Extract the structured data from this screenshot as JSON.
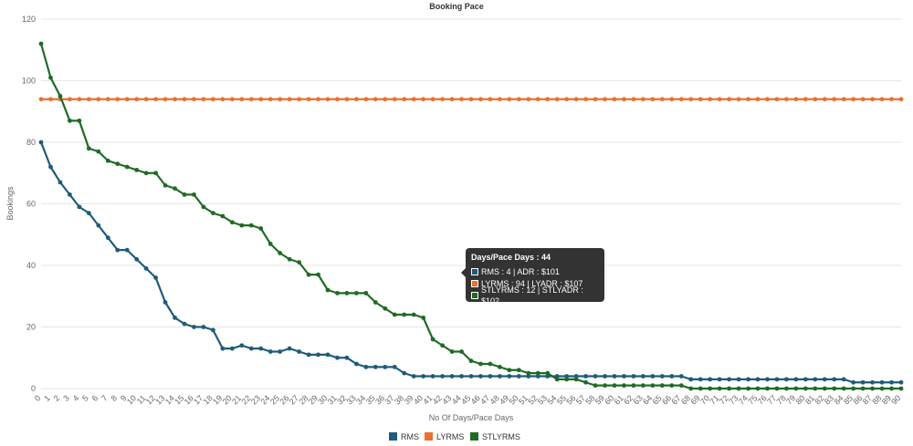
{
  "chart_data": {
    "type": "line",
    "title": "Booking Pace",
    "xlabel": "No Of Days/Pace Days",
    "ylabel": "Bookings",
    "ylim": [
      0,
      120
    ],
    "yticks": [
      0,
      20,
      40,
      60,
      80,
      100,
      120
    ],
    "grid": true,
    "legend_position": "bottom",
    "x": [
      0,
      1,
      2,
      3,
      4,
      5,
      6,
      7,
      8,
      9,
      10,
      11,
      12,
      13,
      14,
      15,
      16,
      17,
      18,
      19,
      20,
      21,
      22,
      23,
      24,
      25,
      26,
      27,
      28,
      29,
      30,
      31,
      32,
      33,
      34,
      35,
      36,
      37,
      38,
      39,
      40,
      41,
      42,
      43,
      44,
      45,
      46,
      47,
      48,
      49,
      50,
      51,
      52,
      53,
      54,
      55,
      56,
      57,
      58,
      59,
      60,
      61,
      62,
      63,
      64,
      65,
      66,
      67,
      68,
      69,
      70,
      71,
      72,
      73,
      74,
      75,
      76,
      77,
      78,
      79,
      80,
      81,
      82,
      83,
      84,
      85,
      86,
      87,
      88,
      89,
      90
    ],
    "series": [
      {
        "name": "RMS",
        "color": "#1f5b7a",
        "values": [
          80,
          72,
          67,
          63,
          59,
          57,
          53,
          49,
          45,
          45,
          42,
          39,
          36,
          28,
          23,
          21,
          20,
          20,
          19,
          13,
          13,
          14,
          13,
          13,
          12,
          12,
          13,
          12,
          11,
          11,
          11,
          10,
          10,
          8,
          7,
          7,
          7,
          7,
          5,
          4,
          4,
          4,
          4,
          4,
          4,
          4,
          4,
          4,
          4,
          4,
          4,
          4,
          4,
          4,
          4,
          4,
          4,
          4,
          4,
          4,
          4,
          4,
          4,
          4,
          4,
          4,
          4,
          4,
          3,
          3,
          3,
          3,
          3,
          3,
          3,
          3,
          3,
          3,
          3,
          3,
          3,
          3,
          3,
          3,
          3,
          2,
          2,
          2,
          2,
          2,
          2
        ]
      },
      {
        "name": "LYRMS",
        "color": "#e87130",
        "values": [
          94,
          94,
          94,
          94,
          94,
          94,
          94,
          94,
          94,
          94,
          94,
          94,
          94,
          94,
          94,
          94,
          94,
          94,
          94,
          94,
          94,
          94,
          94,
          94,
          94,
          94,
          94,
          94,
          94,
          94,
          94,
          94,
          94,
          94,
          94,
          94,
          94,
          94,
          94,
          94,
          94,
          94,
          94,
          94,
          94,
          94,
          94,
          94,
          94,
          94,
          94,
          94,
          94,
          94,
          94,
          94,
          94,
          94,
          94,
          94,
          94,
          94,
          94,
          94,
          94,
          94,
          94,
          94,
          94,
          94,
          94,
          94,
          94,
          94,
          94,
          94,
          94,
          94,
          94,
          94,
          94,
          94,
          94,
          94,
          94,
          94,
          94,
          94,
          94,
          94,
          94
        ]
      },
      {
        "name": "STLYRMS",
        "color": "#1f6b25",
        "values": [
          112,
          101,
          95,
          87,
          87,
          78,
          77,
          74,
          73,
          72,
          71,
          70,
          70,
          66,
          65,
          63,
          63,
          59,
          57,
          56,
          54,
          53,
          53,
          52,
          47,
          44,
          42,
          41,
          37,
          37,
          32,
          31,
          31,
          31,
          31,
          28,
          26,
          24,
          24,
          24,
          23,
          16,
          14,
          12,
          12,
          9,
          8,
          8,
          7,
          6,
          6,
          5,
          5,
          5,
          3,
          3,
          3,
          2,
          1,
          1,
          1,
          1,
          1,
          1,
          1,
          1,
          1,
          1,
          0,
          0,
          0,
          0,
          0,
          0,
          0,
          0,
          0,
          0,
          0,
          0,
          0,
          0,
          0,
          0,
          0,
          0,
          0,
          0,
          0,
          0,
          0
        ]
      }
    ]
  },
  "tooltip": {
    "title": "Days/Pace Days : 44",
    "rows": [
      {
        "text": "RMS : 4 | ADR : $101",
        "color": "#1f5b7a"
      },
      {
        "text": "LYRMS : 94 | LYADR : $107",
        "color": "#e87130"
      },
      {
        "text": "STLYRMS : 12 | STLYADR : $102",
        "color": "#1f6b25"
      }
    ]
  }
}
